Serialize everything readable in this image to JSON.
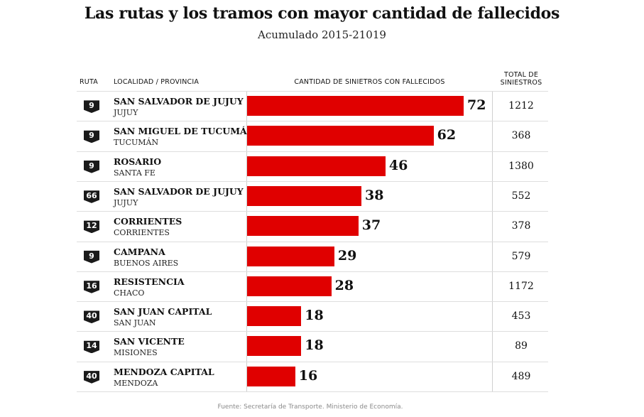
{
  "title": "Las rutas y los tramos con mayor cantidad de fallecidos",
  "subtitle": "Acumulado 2015-21019",
  "headers": {
    "ruta": "RUTA",
    "localidad": "LOCALIDAD / PROVINCIA",
    "cantidad": "CANTIDAD DE SINIETROS CON FALLECIDOS",
    "total": "TOTAL DE SINIESTROS"
  },
  "source": "Fuente: Secretaría de Transporte. Ministerio de Economía.",
  "colors": {
    "bar": "#e00000",
    "route_badge": "#1a1a1a"
  },
  "chart_data": {
    "type": "bar",
    "orientation": "horizontal",
    "title": "Las rutas y los tramos con mayor cantidad de fallecidos",
    "subtitle": "Acumulado 2015-21019",
    "xlim": [
      0,
      72
    ],
    "rows": [
      {
        "ruta": "9",
        "city": "SAN SALVADOR DE JUJUY",
        "province": "JUJUY",
        "value": 72,
        "total": "1212"
      },
      {
        "ruta": "9",
        "city": "SAN MIGUEL DE TUCUMÁN",
        "province": "TUCUMÁN",
        "value": 62,
        "total": "368"
      },
      {
        "ruta": "9",
        "city": "ROSARIO",
        "province": "SANTA FE",
        "value": 46,
        "total": "1380"
      },
      {
        "ruta": "66",
        "city": "SAN SALVADOR DE JUJUY",
        "province": "JUJUY",
        "value": 38,
        "total": "552"
      },
      {
        "ruta": "12",
        "city": "CORRIENTES",
        "province": "CORRIENTES",
        "value": 37,
        "total": "378"
      },
      {
        "ruta": "9",
        "city": "CAMPANA",
        "province": "BUENOS AIRES",
        "value": 29,
        "total": "579"
      },
      {
        "ruta": "16",
        "city": "RESISTENCIA",
        "province": "CHACO",
        "value": 28,
        "total": "1172"
      },
      {
        "ruta": "40",
        "city": "SAN JUAN CAPITAL",
        "province": "SAN JUAN",
        "value": 18,
        "total": "453"
      },
      {
        "ruta": "14",
        "city": "SAN VICENTE",
        "province": "MISIONES",
        "value": 18,
        "total": "89"
      },
      {
        "ruta": "40",
        "city": "MENDOZA CAPITAL",
        "province": "MENDOZA",
        "value": 16,
        "total": "489"
      }
    ]
  }
}
